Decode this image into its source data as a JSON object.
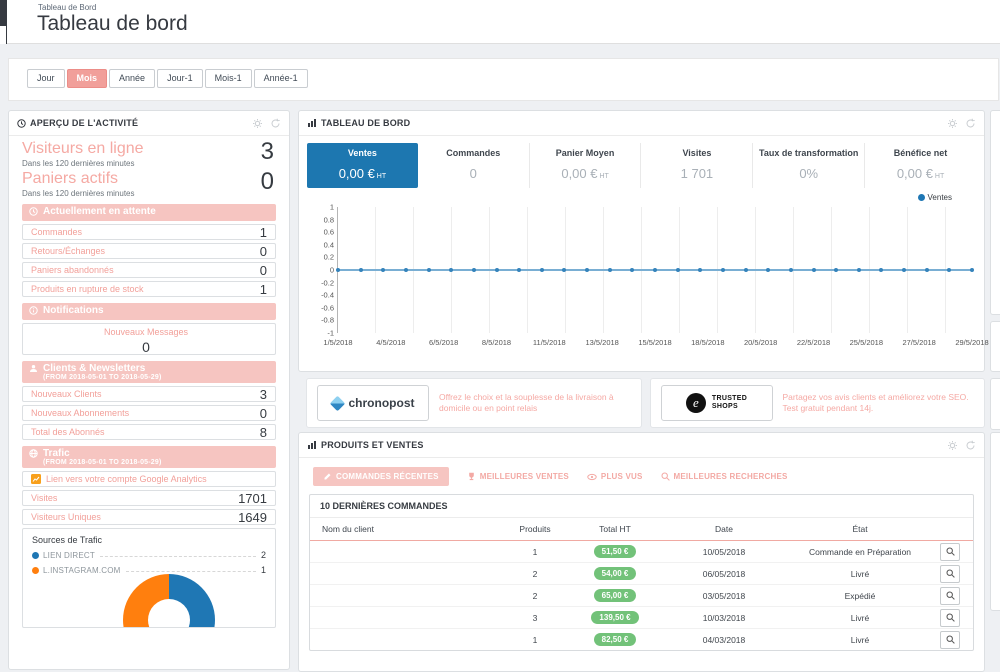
{
  "page": {
    "breadcrumb": "Tableau de Bord",
    "title": "Tableau de bord"
  },
  "colors": {
    "accent_pink": "#f6c5c1",
    "pink_text": "#f3a9a4",
    "active_blue": "#1d77b0",
    "line_blue": "#3583bb",
    "badge_green": "#72c279",
    "dark": "#363a41"
  },
  "time_filter": {
    "buttons": [
      {
        "label": "Jour",
        "active": false
      },
      {
        "label": "Mois",
        "active": true
      },
      {
        "label": "Année",
        "active": false
      },
      {
        "label": "Jour-1",
        "active": false
      },
      {
        "label": "Mois-1",
        "active": false
      },
      {
        "label": "Année-1",
        "active": false
      }
    ]
  },
  "activity_panel": {
    "title": "APERÇU DE L'ACTIVITÉ",
    "metrics": [
      {
        "label": "Visiteurs en ligne",
        "sub": "Dans les 120 dernières minutes",
        "value": "3"
      },
      {
        "label": "Paniers actifs",
        "sub": "Dans les 120 dernières minutes",
        "value": "0"
      }
    ],
    "pending": {
      "title": "Actuellement en attente",
      "rows": [
        [
          "Commandes",
          "1"
        ],
        [
          "Retours/Échanges",
          "0"
        ],
        [
          "Paniers abandonnés",
          "0"
        ],
        [
          "Produits en rupture de stock",
          "1"
        ]
      ]
    },
    "notifications": {
      "title": "Notifications",
      "message_label": "Nouveaux Messages",
      "message_value": "0"
    },
    "customers": {
      "title": "Clients & Newsletters",
      "subtitle": "(FROM 2018-05-01 TO 2018-05-29)",
      "rows": [
        [
          "Nouveaux Clients",
          "3"
        ],
        [
          "Nouveaux Abonnements",
          "0"
        ],
        [
          "Total des Abonnés",
          "8"
        ]
      ]
    },
    "traffic": {
      "title": "Trafic",
      "subtitle": "(FROM 2018-05-01 TO 2018-05-29)",
      "analytics_link": "Lien vers votre compte Google Analytics",
      "rows": [
        [
          "Visites",
          "1701"
        ],
        [
          "Visiteurs Uniques",
          "1649"
        ]
      ],
      "sources_title": "Sources de Trafic",
      "sources": [
        {
          "label": "LIEN DIRECT",
          "value": "2",
          "color": "#1f77b4"
        },
        {
          "label": "L.INSTAGRAM.COM",
          "value": "1",
          "color": "#ff7f0e"
        }
      ]
    }
  },
  "dashboard_panel": {
    "title": "TABLEAU DE BORD",
    "legend": "Ventes",
    "kpis": [
      {
        "label": "Ventes",
        "value": "0,00 €",
        "unit": "HT",
        "active": true
      },
      {
        "label": "Commandes",
        "value": "0",
        "unit": "",
        "active": false
      },
      {
        "label": "Panier Moyen",
        "value": "0,00 €",
        "unit": "HT",
        "active": false
      },
      {
        "label": "Visites",
        "value": "1 701",
        "unit": "",
        "active": false
      },
      {
        "label": "Taux de transformation",
        "value": "0%",
        "unit": "",
        "active": false
      },
      {
        "label": "Bénéfice net",
        "value": "0,00 €",
        "unit": "HT",
        "active": false
      }
    ]
  },
  "chart_data": [
    {
      "type": "line",
      "title": "Ventes",
      "x_ticks": [
        "1/5/2018",
        "4/5/2018",
        "6/5/2018",
        "8/5/2018",
        "11/5/2018",
        "13/5/2018",
        "15/5/2018",
        "18/5/2018",
        "20/5/2018",
        "22/5/2018",
        "25/5/2018",
        "27/5/2018",
        "29/5/2018"
      ],
      "ylim": [
        -1,
        1
      ],
      "ytick_step": 0.2,
      "legend_position": "top-right",
      "series": [
        {
          "name": "Ventes",
          "color": "#3583bb",
          "values": [
            0,
            0,
            0,
            0,
            0,
            0,
            0,
            0,
            0,
            0,
            0,
            0,
            0,
            0,
            0,
            0,
            0,
            0,
            0,
            0,
            0,
            0,
            0,
            0,
            0,
            0,
            0,
            0,
            0
          ]
        }
      ]
    },
    {
      "type": "donut",
      "title": "Sources de Trafic",
      "slices": [
        {
          "label": "LIEN DIRECT",
          "value": 2,
          "color": "#1f77b4"
        },
        {
          "label": "L.INSTAGRAM.COM",
          "value": 1,
          "color": "#ff7f0e"
        }
      ]
    }
  ],
  "banners": [
    {
      "name": "chronopost",
      "logo": "chronopost",
      "text": "Offrez le choix et la souplesse de la livraison à domicile ou en point relais"
    },
    {
      "name": "trusted-shops",
      "logo_line1": "TRUSTED",
      "logo_line2": "SHOPS",
      "logo_letter": "e",
      "text": "Partagez vos avis clients et améliorez votre SEO. Test gratuit pendant 14j."
    }
  ],
  "products_panel": {
    "title": "PRODUITS ET VENTES",
    "tabs": [
      {
        "icon": "pencil-icon",
        "label": "COMMANDES RÉCENTES",
        "active": true
      },
      {
        "icon": "trophy-icon",
        "label": "MEILLEURES VENTES",
        "active": false
      },
      {
        "icon": "eye-icon",
        "label": "PLUS VUS",
        "active": false
      },
      {
        "icon": "search-icon",
        "label": "MEILLEURES RECHERCHES",
        "active": false
      }
    ],
    "table": {
      "title": "10 DERNIÈRES COMMANDES",
      "columns": [
        "Nom du client",
        "Produits",
        "Total HT",
        "Date",
        "État"
      ],
      "rows": [
        {
          "client_redacted": true,
          "products": "1",
          "total": "51,50 €",
          "date": "10/05/2018",
          "status": "Commande en Préparation"
        },
        {
          "client_redacted": true,
          "products": "2",
          "total": "54,00 €",
          "date": "06/05/2018",
          "status": "Livré"
        },
        {
          "client_redacted": true,
          "products": "2",
          "total": "65,00 €",
          "date": "03/05/2018",
          "status": "Expédié"
        },
        {
          "client_redacted": true,
          "products": "3",
          "total": "139,50 €",
          "date": "10/03/2018",
          "status": "Livré"
        },
        {
          "client_redacted": true,
          "products": "1",
          "total": "82,50 €",
          "date": "04/03/2018",
          "status": "Livré"
        }
      ]
    }
  }
}
